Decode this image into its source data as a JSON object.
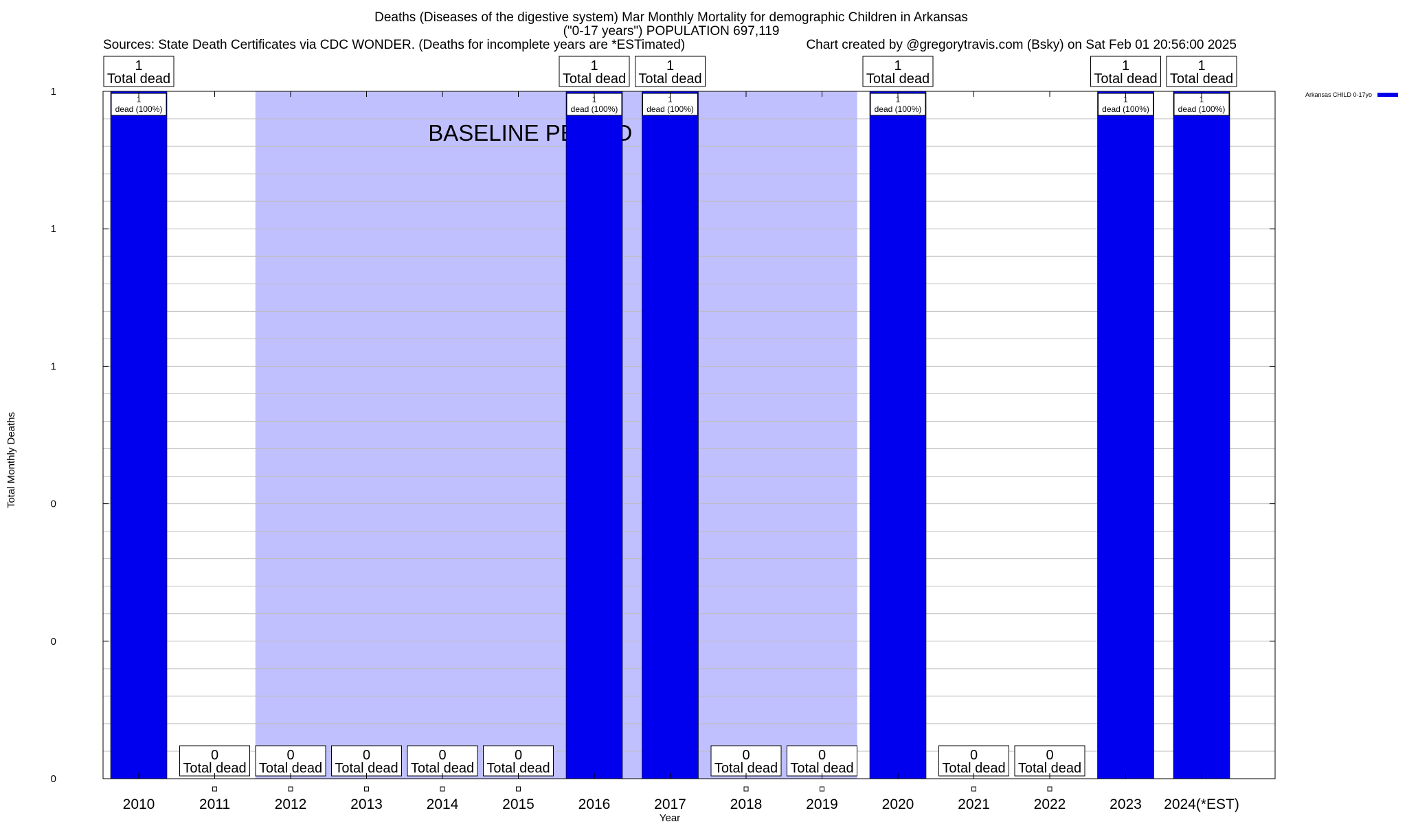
{
  "header": {
    "title_line1": "Deaths (Diseases of the digestive system) Mar Monthly Mortality for demographic Children in Arkansas",
    "title_line2": "(\"0-17 years\") POPULATION 697,119",
    "sources": "Sources: State Death Certificates via CDC WONDER. (Deaths for incomplete years are *ESTimated)",
    "credit": "Chart created by @gregorytravis.com (Bsky) on Sat Feb 01 20:56:00 2025"
  },
  "chart_data": {
    "type": "bar",
    "xlabel": "Year",
    "ylabel": "Total Monthly Deaths",
    "categories": [
      "2010",
      "2011",
      "2012",
      "2013",
      "2014",
      "2015",
      "2016",
      "2017",
      "2018",
      "2019",
      "2020",
      "2021",
      "2022",
      "2023",
      "2024(*EST)"
    ],
    "series": [
      {
        "name": "Arkansas CHILD 0-17yo",
        "color": "#0000ee",
        "values": [
          1,
          0,
          0,
          0,
          0,
          0,
          1,
          1,
          0,
          0,
          1,
          0,
          0,
          1,
          1
        ]
      }
    ],
    "total_labels": [
      {
        "num": "1",
        "text": "Total dead"
      },
      {
        "num": "0",
        "text": "Total dead"
      },
      {
        "num": "0",
        "text": "Total dead"
      },
      {
        "num": "0",
        "text": "Total dead"
      },
      {
        "num": "0",
        "text": "Total dead"
      },
      {
        "num": "0",
        "text": "Total dead"
      },
      {
        "num": "1",
        "text": "Total dead"
      },
      {
        "num": "1",
        "text": "Total dead"
      },
      {
        "num": "0",
        "text": "Total dead"
      },
      {
        "num": "0",
        "text": "Total dead"
      },
      {
        "num": "1",
        "text": "Total dead"
      },
      {
        "num": "0",
        "text": "Total dead"
      },
      {
        "num": "0",
        "text": "Total dead"
      },
      {
        "num": "1",
        "text": "Total dead"
      },
      {
        "num": "1",
        "text": "Total dead"
      }
    ],
    "bar_labels": [
      {
        "num": "1",
        "text": "dead (100%)"
      },
      null,
      null,
      null,
      null,
      null,
      {
        "num": "1",
        "text": "dead (100%)"
      },
      {
        "num": "1",
        "text": "dead (100%)"
      },
      null,
      null,
      {
        "num": "1",
        "text": "dead (100%)"
      },
      null,
      null,
      {
        "num": "1",
        "text": "dead (100%)"
      },
      {
        "num": "1",
        "text": "dead (100%)"
      }
    ],
    "ylim": [
      0,
      1
    ],
    "y_tick_labels": [
      "0",
      "0",
      "0",
      "1",
      "1",
      "1"
    ],
    "grid": true,
    "baseline_period": {
      "label": "BASELINE PERIOD",
      "start_category": "2012",
      "end_category": "2019",
      "color": "#c0c0ff"
    },
    "legend": {
      "placement": "top-right-outside",
      "label": "Arkansas CHILD 0-17yo"
    }
  }
}
